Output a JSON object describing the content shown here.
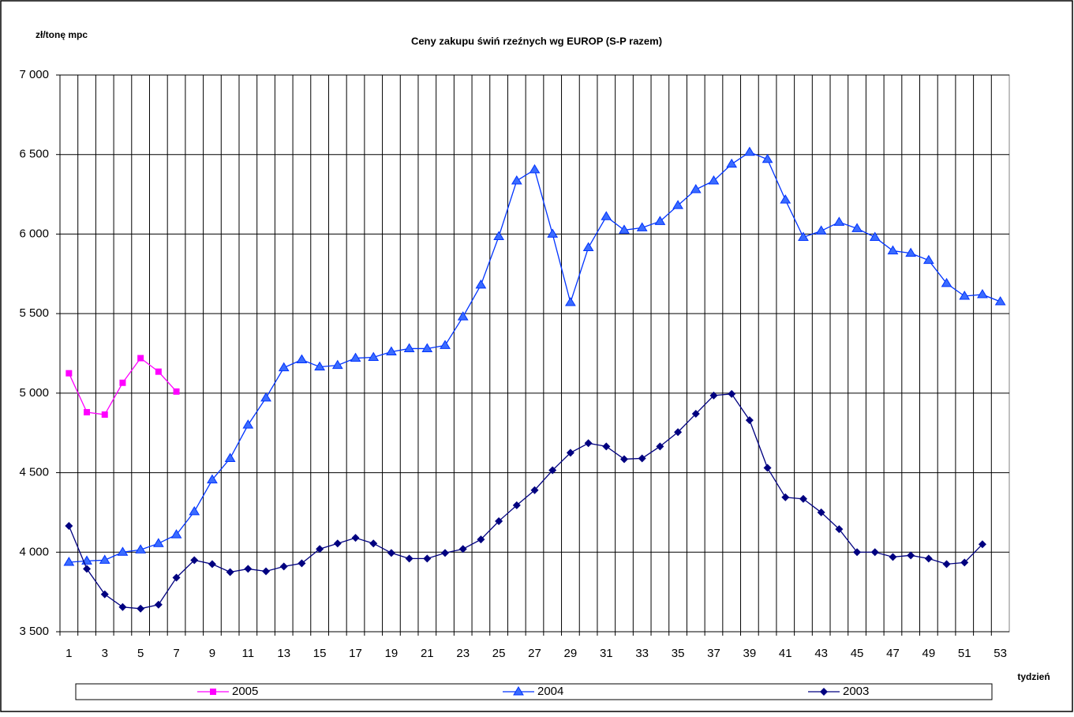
{
  "chart_data": {
    "type": "line",
    "title": "Ceny zakupu świń rzeźnych wg EUROP (S-P razem)",
    "y_label": "zł/tonę mpc",
    "x_label": "tydzień",
    "categories": [
      "1",
      null,
      "3",
      null,
      "5",
      null,
      "7",
      null,
      "9",
      null,
      "11",
      null,
      "13",
      null,
      "15",
      null,
      "17",
      null,
      "19",
      null,
      "21",
      null,
      "23",
      null,
      "25",
      null,
      "27",
      null,
      "29",
      null,
      "31",
      null,
      "33",
      null,
      "35",
      null,
      "37",
      null,
      "39",
      null,
      "41",
      null,
      "43",
      null,
      "45",
      null,
      "47",
      null,
      "49",
      null,
      "51",
      null,
      "53"
    ],
    "ylim": [
      3500,
      7000
    ],
    "yticks": [
      {
        "value": 3500,
        "label": "3 500"
      },
      {
        "value": 4000,
        "label": "4 000"
      },
      {
        "value": 4500,
        "label": "4 500"
      },
      {
        "value": 5000,
        "label": "5 000"
      },
      {
        "value": 5500,
        "label": "5 500"
      },
      {
        "value": 6000,
        "label": "6 000"
      },
      {
        "value": 6500,
        "label": "6 500"
      },
      {
        "value": 7000,
        "label": "7 000"
      }
    ],
    "grid": true,
    "legend": "bottom",
    "series": [
      {
        "name": "2005",
        "color": "#ff00ff",
        "marker": "square",
        "values": [
          5125,
          4880,
          4865,
          5065,
          5220,
          5135,
          5010,
          null,
          null,
          null,
          null,
          null,
          null,
          null,
          null,
          null,
          null,
          null,
          null,
          null,
          null,
          null,
          null,
          null,
          null,
          null,
          null,
          null,
          null,
          null,
          null,
          null,
          null,
          null,
          null,
          null,
          null,
          null,
          null,
          null,
          null,
          null,
          null,
          null,
          null,
          null,
          null,
          null,
          null,
          null,
          null,
          null,
          null
        ]
      },
      {
        "name": "2004",
        "color": "#0033ff",
        "marker": "triangle",
        "values": [
          3937,
          3945,
          3950,
          4000,
          4015,
          4055,
          4110,
          4255,
          4455,
          4590,
          4800,
          4970,
          5160,
          5210,
          5165,
          5175,
          5220,
          5225,
          5260,
          5280,
          5280,
          5300,
          5480,
          5680,
          5985,
          6335,
          6405,
          6000,
          5570,
          5915,
          6110,
          6025,
          6040,
          6080,
          6180,
          6280,
          6335,
          6440,
          6515,
          6470,
          6215,
          5980,
          6020,
          6075,
          6035,
          5980,
          5895,
          5880,
          5835,
          5690,
          5610,
          5620,
          5575
        ]
      },
      {
        "name": "2003",
        "color": "#000080",
        "marker": "diamond",
        "values": [
          4165,
          3895,
          3735,
          3655,
          3645,
          3670,
          3840,
          3950,
          3925,
          3875,
          3895,
          3880,
          3910,
          3930,
          4020,
          4055,
          4090,
          4055,
          3995,
          3960,
          3960,
          3995,
          4020,
          4080,
          4195,
          4295,
          4390,
          4515,
          4625,
          4685,
          4665,
          4585,
          4590,
          4665,
          4755,
          4870,
          4985,
          4995,
          4830,
          4530,
          4345,
          4335,
          4250,
          4145,
          4000,
          4000,
          3970,
          3980,
          3960,
          3925,
          3935,
          4050,
          null
        ]
      }
    ]
  }
}
